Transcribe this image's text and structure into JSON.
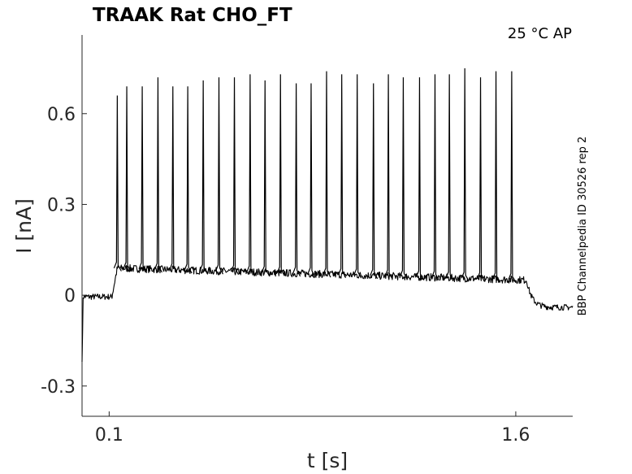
{
  "chart_data": {
    "type": "line",
    "title": "TRAAK  Rat  CHO_FT",
    "condition_label": "25 °C  AP",
    "side_label": "BBP Channelpedia ID 30526 rep 2",
    "xlabel": "t [s]",
    "ylabel": "I [nA]",
    "x_ticks": [
      0.1,
      1.6
    ],
    "x_tick_labels": [
      "0.1",
      "1.6"
    ],
    "y_ticks": [
      -0.3,
      0,
      0.3,
      0.6
    ],
    "y_tick_labels": [
      "-0.3",
      "0",
      "0.3",
      "0.6"
    ],
    "xlim": [
      0.0,
      1.81
    ],
    "ylim": [
      -0.4,
      0.86
    ],
    "grid": false,
    "legend": "none",
    "line_color": "#000000",
    "baseline_before": -0.005,
    "baseline_after": -0.04,
    "step_start_s": 0.11,
    "step_end_s": 1.64,
    "plateau_start_level": 0.09,
    "plateau_end_level": 0.05,
    "spike_times_s": [
      0.13,
      0.165,
      0.222,
      0.28,
      0.335,
      0.39,
      0.447,
      0.505,
      0.562,
      0.62,
      0.675,
      0.732,
      0.79,
      0.845,
      0.902,
      0.958,
      1.015,
      1.075,
      1.13,
      1.185,
      1.245,
      1.302,
      1.355,
      1.412,
      1.47,
      1.527,
      1.585
    ],
    "spike_peaks_nA": [
      0.66,
      0.69,
      0.69,
      0.72,
      0.69,
      0.69,
      0.71,
      0.72,
      0.72,
      0.73,
      0.71,
      0.73,
      0.7,
      0.7,
      0.74,
      0.73,
      0.73,
      0.7,
      0.73,
      0.72,
      0.72,
      0.73,
      0.73,
      0.75,
      0.72,
      0.74,
      0.74
    ]
  }
}
